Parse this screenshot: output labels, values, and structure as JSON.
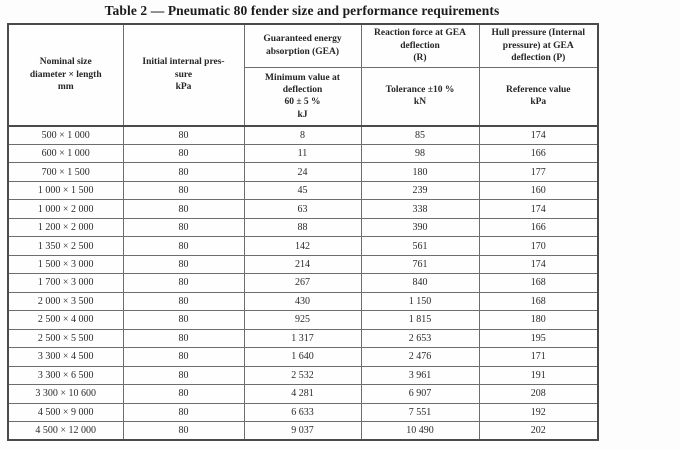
{
  "title": "Table 2 — Pneumatic 80 fender size and performance requirements",
  "colors": {
    "border_outer": "#4a4a4a",
    "border_inner": "#6e6e6e",
    "text": "#222222",
    "background": "#fdfdfd"
  },
  "table": {
    "header": {
      "nominal_size": "Nominal size\ndiameter × length\nmm",
      "initial_pressure": "Initial internal pres-\nsure\nkPa",
      "gea_group": "Guaranteed energy\nabsorption (GEA)",
      "gea_sub": "Minimum value at\ndeflection\n60 ± 5 %\nkJ",
      "reaction_group": "Reaction force at GEA\ndeflection\n(R)",
      "reaction_sub": "Tolerance ±10 %\nkN",
      "hull_group": "Hull pressure (Internal\npressure) at GEA\ndeflection (P)",
      "hull_sub": "Reference value\nkPa"
    },
    "rows": [
      [
        "500 × 1 000",
        "80",
        "8",
        "85",
        "174"
      ],
      [
        "600 × 1 000",
        "80",
        "11",
        "98",
        "166"
      ],
      [
        "700 × 1 500",
        "80",
        "24",
        "180",
        "177"
      ],
      [
        "1 000 × 1 500",
        "80",
        "45",
        "239",
        "160"
      ],
      [
        "1 000 × 2 000",
        "80",
        "63",
        "338",
        "174"
      ],
      [
        "1 200 × 2 000",
        "80",
        "88",
        "390",
        "166"
      ],
      [
        "1 350 × 2 500",
        "80",
        "142",
        "561",
        "170"
      ],
      [
        "1 500 × 3 000",
        "80",
        "214",
        "761",
        "174"
      ],
      [
        "1 700 × 3 000",
        "80",
        "267",
        "840",
        "168"
      ],
      [
        "2 000 × 3 500",
        "80",
        "430",
        "1 150",
        "168"
      ],
      [
        "2 500 × 4 000",
        "80",
        "925",
        "1 815",
        "180"
      ],
      [
        "2 500 × 5 500",
        "80",
        "1 317",
        "2 653",
        "195"
      ],
      [
        "3 300 × 4 500",
        "80",
        "1 640",
        "2 476",
        "171"
      ],
      [
        "3 300 × 6 500",
        "80",
        "2 532",
        "3 961",
        "191"
      ],
      [
        "3 300 × 10 600",
        "80",
        "4 281",
        "6 907",
        "208"
      ],
      [
        "4 500 × 9 000",
        "80",
        "6 633",
        "7 551",
        "192"
      ],
      [
        "4 500 × 12 000",
        "80",
        "9 037",
        "10 490",
        "202"
      ]
    ]
  }
}
